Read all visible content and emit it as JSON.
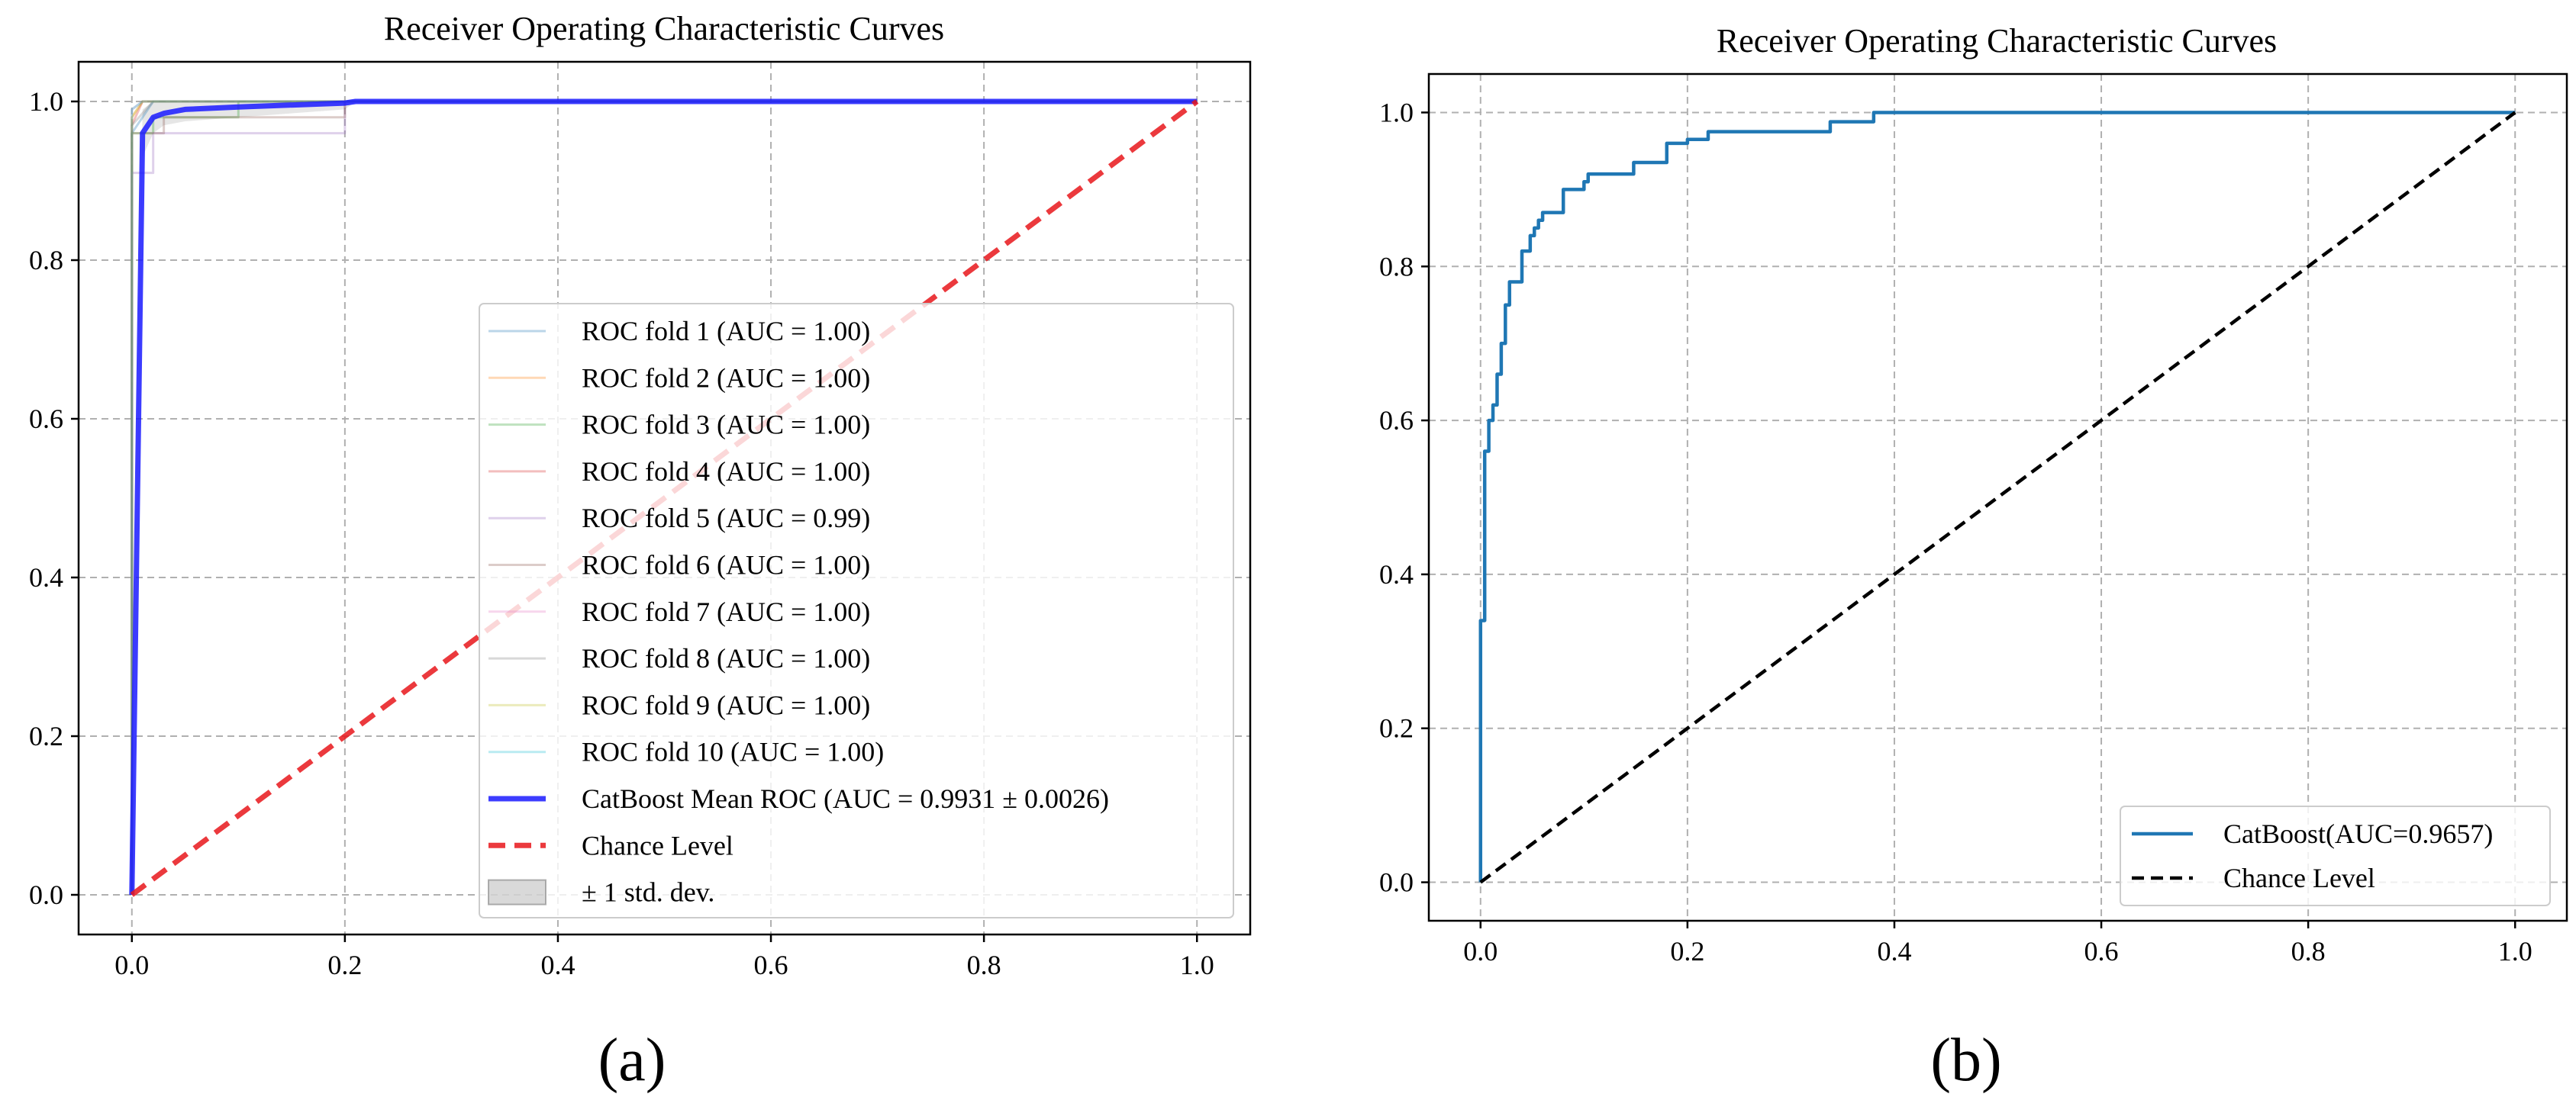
{
  "chart_data": [
    {
      "type": "line",
      "title": "Receiver Operating Characteristic Curves",
      "panel_label": "(a)",
      "xlim": [
        -0.05,
        1.05
      ],
      "ylim": [
        -0.05,
        1.05
      ],
      "xticks": [
        0.0,
        0.2,
        0.4,
        0.6,
        0.8,
        1.0
      ],
      "yticks": [
        0.0,
        0.2,
        0.4,
        0.6,
        0.8,
        1.0
      ],
      "xtick_labels": [
        "0.0",
        "0.2",
        "0.4",
        "0.6",
        "0.8",
        "1.0"
      ],
      "ytick_labels": [
        "0.0",
        "0.2",
        "0.4",
        "0.6",
        "0.8",
        "1.0"
      ],
      "grid": true,
      "legend_position": "lower-right",
      "series": [
        {
          "name": "ROC fold 1 (AUC = 1.00)",
          "color": "#1f77b4",
          "opacity": 0.3,
          "x": [
            0,
            0,
            0.02,
            1
          ],
          "y": [
            0,
            0.96,
            1,
            1
          ]
        },
        {
          "name": "ROC fold 2 (AUC = 1.00)",
          "color": "#ff7f0e",
          "opacity": 0.3,
          "x": [
            0,
            0,
            0.01,
            1
          ],
          "y": [
            0,
            0.98,
            1,
            1
          ]
        },
        {
          "name": "ROC fold 3 (AUC = 1.00)",
          "color": "#2ca02c",
          "opacity": 0.3,
          "x": [
            0,
            0,
            0.02,
            0.02,
            0.1,
            0.1,
            1
          ],
          "y": [
            0,
            0.96,
            0.96,
            0.98,
            0.98,
            1,
            1
          ]
        },
        {
          "name": "ROC fold 4 (AUC = 1.00)",
          "color": "#d62728",
          "opacity": 0.3,
          "x": [
            0,
            0,
            0.01,
            1
          ],
          "y": [
            0,
            0.97,
            1,
            1
          ]
        },
        {
          "name": "ROC fold 5 (AUC = 0.99)",
          "color": "#9467bd",
          "opacity": 0.3,
          "x": [
            0,
            0,
            0.02,
            0.02,
            0.2,
            0.2,
            1
          ],
          "y": [
            0,
            0.91,
            0.91,
            0.96,
            0.96,
            1,
            1
          ]
        },
        {
          "name": "ROC fold 6 (AUC = 1.00)",
          "color": "#8c564b",
          "opacity": 0.3,
          "x": [
            0,
            0,
            0.03,
            0.03,
            0.2,
            0.2,
            1
          ],
          "y": [
            0,
            0.96,
            0.96,
            0.98,
            0.98,
            1,
            1
          ]
        },
        {
          "name": "ROC fold 7 (AUC = 1.00)",
          "color": "#e377c2",
          "opacity": 0.3,
          "x": [
            0,
            0,
            0.01,
            1
          ],
          "y": [
            0,
            0.99,
            1,
            1
          ]
        },
        {
          "name": "ROC fold 8 (AUC = 1.00)",
          "color": "#7f7f7f",
          "opacity": 0.3,
          "x": [
            0,
            0,
            0.02,
            1
          ],
          "y": [
            0,
            0.97,
            1,
            1
          ]
        },
        {
          "name": "ROC fold 9 (AUC = 1.00)",
          "color": "#bcbd22",
          "opacity": 0.3,
          "x": [
            0,
            0,
            0.01,
            1
          ],
          "y": [
            0,
            0.98,
            1,
            1
          ]
        },
        {
          "name": "ROC fold 10 (AUC = 1.00)",
          "color": "#17becf",
          "opacity": 0.3,
          "x": [
            0,
            0,
            0.01,
            1
          ],
          "y": [
            0,
            0.99,
            1,
            1
          ]
        },
        {
          "name": "CatBoost Mean ROC (AUC = 0.9931 ± 0.0026)",
          "color": "#1a1aff",
          "opacity": 0.85,
          "style": "solid-thick",
          "x": [
            0,
            0.01,
            0.02,
            0.03,
            0.05,
            0.1,
            0.2,
            0.21,
            1.0
          ],
          "y": [
            0,
            0.96,
            0.98,
            0.985,
            0.99,
            0.993,
            0.998,
            1.0,
            1.0
          ]
        },
        {
          "name": "Chance Level",
          "color": "#e8161b",
          "opacity": 0.85,
          "style": "dashed-thick",
          "x": [
            0,
            1
          ],
          "y": [
            0,
            1
          ]
        }
      ],
      "std_band": {
        "name": "± 1 std. dev.",
        "color": "#808080",
        "opacity": 0.2,
        "x": [
          0,
          0.01,
          0.02,
          0.03,
          0.05,
          0.1,
          0.2,
          0.21,
          1.0
        ],
        "upper": [
          0,
          0.99,
          1.0,
          1.0,
          1.0,
          1.0,
          1.0,
          1.0,
          1.0
        ],
        "lower": [
          0,
          0.93,
          0.96,
          0.97,
          0.975,
          0.98,
          0.99,
          1.0,
          1.0
        ]
      }
    },
    {
      "type": "line",
      "title": "Receiver Operating Characteristic Curves",
      "panel_label": "(b)",
      "xlim": [
        -0.05,
        1.05
      ],
      "ylim": [
        -0.05,
        1.05
      ],
      "xticks": [
        0.0,
        0.2,
        0.4,
        0.6,
        0.8,
        1.0
      ],
      "yticks": [
        0.0,
        0.2,
        0.4,
        0.6,
        0.8,
        1.0
      ],
      "xtick_labels": [
        "0.0",
        "0.2",
        "0.4",
        "0.6",
        "0.8",
        "1.0"
      ],
      "ytick_labels": [
        "0.0",
        "0.2",
        "0.4",
        "0.6",
        "0.8",
        "1.0"
      ],
      "grid": true,
      "legend_position": "lower-right",
      "series": [
        {
          "name": "CatBoost(AUC=0.9657)",
          "color": "#1f77b4",
          "opacity": 1,
          "style": "step",
          "x": [
            0,
            0,
            0.004,
            0.004,
            0.008,
            0.008,
            0.012,
            0.012,
            0.016,
            0.016,
            0.02,
            0.02,
            0.024,
            0.024,
            0.028,
            0.028,
            0.032,
            0.032,
            0.036,
            0.036,
            0.04,
            0.04,
            0.044,
            0.044,
            0.048,
            0.048,
            0.052,
            0.052,
            0.056,
            0.056,
            0.06,
            0.06,
            0.068,
            0.068,
            0.08,
            0.08,
            0.092,
            0.092,
            0.1,
            0.1,
            0.104,
            0.104,
            0.148,
            0.148,
            0.18,
            0.18,
            0.2,
            0.2,
            0.22,
            0.22,
            0.338,
            0.338,
            0.38,
            0.38,
            1.0
          ],
          "y": [
            0,
            0.34,
            0.34,
            0.56,
            0.56,
            0.6,
            0.6,
            0.62,
            0.62,
            0.66,
            0.66,
            0.7,
            0.7,
            0.75,
            0.75,
            0.78,
            0.78,
            0.78,
            0.78,
            0.78,
            0.78,
            0.82,
            0.82,
            0.82,
            0.82,
            0.84,
            0.84,
            0.85,
            0.85,
            0.86,
            0.86,
            0.87,
            0.87,
            0.87,
            0.87,
            0.9,
            0.9,
            0.9,
            0.9,
            0.91,
            0.91,
            0.92,
            0.92,
            0.935,
            0.935,
            0.96,
            0.96,
            0.965,
            0.965,
            0.975,
            0.975,
            0.988,
            0.988,
            1.0,
            1.0
          ]
        },
        {
          "name": "Chance Level",
          "color": "#000000",
          "opacity": 1,
          "style": "dashed",
          "x": [
            0,
            1
          ],
          "y": [
            0,
            1
          ]
        }
      ]
    }
  ]
}
